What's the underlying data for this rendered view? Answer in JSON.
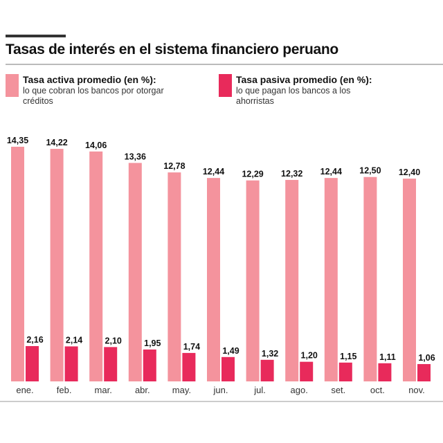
{
  "chart_data": {
    "type": "bar",
    "title": "Tasas de interés en el sistema financiero peruano",
    "categories": [
      "ene.",
      "feb.",
      "mar.",
      "abr.",
      "may.",
      "jun.",
      "jul.",
      "ago.",
      "set.",
      "oct.",
      "nov."
    ],
    "series": [
      {
        "name": "Tasa activa promedio (en %):",
        "description": "lo que cobran los bancos por otorgar créditos",
        "color": "#f4939d",
        "values": [
          14.35,
          14.22,
          14.06,
          13.36,
          12.78,
          12.44,
          12.29,
          12.32,
          12.44,
          12.5,
          12.4
        ],
        "labels": [
          "14,35",
          "14,22",
          "14,06",
          "13,36",
          "12,78",
          "12,44",
          "12,29",
          "12,32",
          "12,44",
          "12,50",
          "12,40"
        ]
      },
      {
        "name": "Tasa pasiva promedio (en %):",
        "description": "lo que pagan los bancos a los ahorristas",
        "color": "#e82a5b",
        "values": [
          2.16,
          2.14,
          2.1,
          1.95,
          1.74,
          1.49,
          1.32,
          1.2,
          1.15,
          1.11,
          1.06
        ],
        "labels": [
          "2,16",
          "2,14",
          "2,10",
          "1,95",
          "1,74",
          "1,49",
          "1,32",
          "1,20",
          "1,15",
          "1,11",
          "1,06"
        ]
      }
    ],
    "ylim": [
      0,
      14.35
    ],
    "grid": false,
    "legend": "top"
  }
}
